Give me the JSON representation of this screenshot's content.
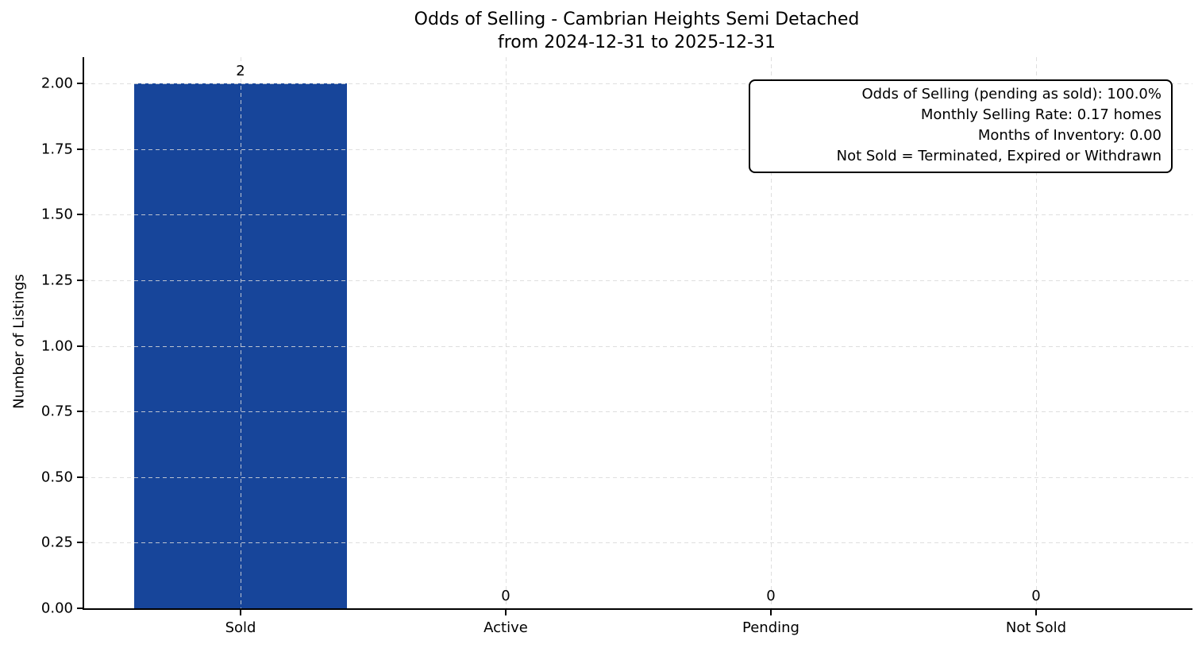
{
  "chart_data": {
    "type": "bar",
    "title": "Odds of Selling - Cambrian Heights Semi Detached",
    "subtitle": "from 2024-12-31 to 2025-12-31",
    "categories": [
      "Sold",
      "Active",
      "Pending",
      "Not Sold"
    ],
    "values": [
      2,
      0,
      0,
      0
    ],
    "bar_labels": [
      "2",
      "0",
      "0",
      "0"
    ],
    "xlabel": "",
    "ylabel": "Number of Listings",
    "ylim": [
      0,
      2.1
    ],
    "xlim": [
      -0.59,
      3.59
    ],
    "yticks": [
      0,
      0.25,
      0.5,
      0.75,
      1.0,
      1.25,
      1.5,
      1.75,
      2.0
    ],
    "ytick_labels": [
      "0.00",
      "0.25",
      "0.50",
      "0.75",
      "1.00",
      "1.25",
      "1.50",
      "1.75",
      "2.00"
    ],
    "bar_width": 0.8,
    "grid": "both-dashed",
    "legend_position": "none",
    "annotation_lines": [
      "Odds of Selling (pending as sold): 100.0%",
      "Monthly Selling Rate: 0.17 homes",
      "Months of Inventory: 0.00",
      "Not Sold = Terminated, Expired or Withdrawn"
    ],
    "colors": {
      "bar": "#17459a",
      "grid": "#d9d9d9",
      "spine": "#000000",
      "text": "#000000",
      "background": "#ffffff"
    }
  }
}
